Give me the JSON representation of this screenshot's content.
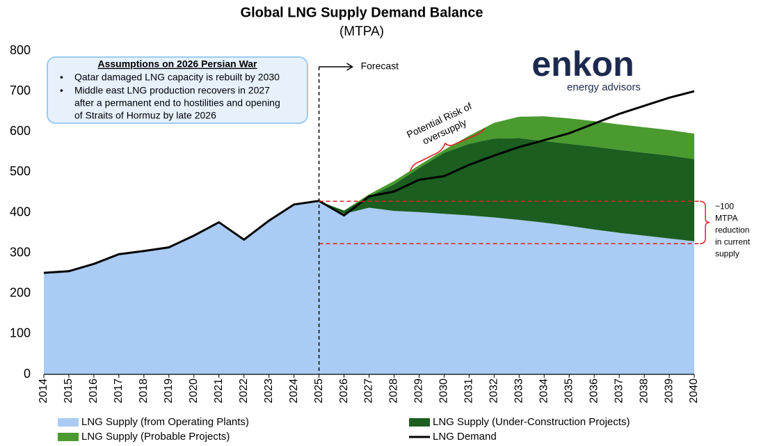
{
  "chart_data": {
    "type": "stacked-area-line",
    "title": "Global LNG Supply Demand Balance",
    "subtitle": "(MTPA)",
    "categories": [
      "2014",
      "2015",
      "2016",
      "2017",
      "2018",
      "2019",
      "2020",
      "2021",
      "2022",
      "2023",
      "2024",
      "2025",
      "2026",
      "2027",
      "2028",
      "2029",
      "2030",
      "2031",
      "2032",
      "2033",
      "2034",
      "2035",
      "2036",
      "2037",
      "2038",
      "2039",
      "2040"
    ],
    "series": [
      {
        "name": "LNG Supply (from Operating Plants)",
        "color": "#aacbf3",
        "kind": "area",
        "values": [
          252,
          255,
          272,
          297,
          305,
          314,
          343,
          376,
          333,
          380,
          420,
          428,
          397,
          412,
          404,
          401,
          397,
          393,
          388,
          382,
          375,
          367,
          358,
          350,
          343,
          336,
          329
        ]
      },
      {
        "name": "LNG Supply (Under-Construction Projects)",
        "color": "#1b5e20",
        "kind": "area",
        "values": [
          null,
          null,
          null,
          null,
          null,
          null,
          null,
          null,
          null,
          null,
          null,
          0,
          8,
          28,
          66,
          109,
          151,
          177,
          195,
          202,
          202,
          203,
          205,
          205,
          205,
          205,
          203
        ]
      },
      {
        "name": "LNG Supply (Probable Projects)",
        "color": "#4a9a2f",
        "kind": "area",
        "values": [
          null,
          null,
          null,
          null,
          null,
          null,
          null,
          null,
          null,
          null,
          null,
          0,
          0,
          5,
          8,
          7,
          7,
          20,
          39,
          53,
          61,
          63,
          63,
          63,
          63,
          63,
          63
        ]
      },
      {
        "name": "LNG Demand",
        "color": "#000000",
        "kind": "line",
        "values": [
          251,
          255,
          273,
          297,
          305,
          314,
          343,
          376,
          333,
          380,
          420,
          429,
          393,
          440,
          452,
          481,
          490,
          518,
          541,
          562,
          579,
          596,
          620,
          644,
          664,
          684,
          700
        ]
      }
    ],
    "ylim": [
      0,
      800
    ],
    "yticks": [
      0,
      100,
      200,
      300,
      400,
      500,
      600,
      700,
      800
    ],
    "grid": false,
    "annotations": {
      "forecast": "Forecast",
      "reduction_lines": [
        428,
        323
      ],
      "reduction_text": [
        "~100",
        "MTPA",
        "reduction",
        "in current",
        "supply"
      ],
      "oversupply": [
        "Potential Risk of",
        "oversupply"
      ],
      "assumptions": {
        "title": "Assumptions on 2026 Persian War",
        "bullet_1": "Qatar damaged LNG capacity is rebuilt by 2030",
        "bullet_2": [
          "Middle east LNG production recovers in 2027",
          "after a permanent end to hostilities and opening",
          "of Straits of Hormuz by late 2026"
        ]
      },
      "logo": {
        "name": "enkon",
        "tagline": "energy advisors"
      }
    }
  }
}
